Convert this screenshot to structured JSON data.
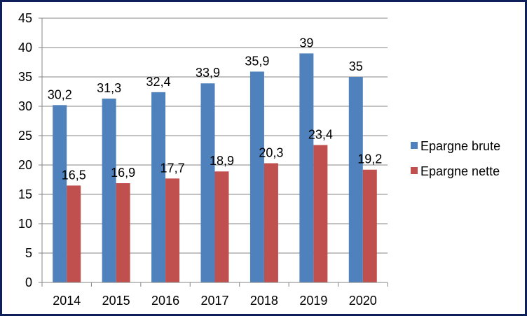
{
  "chart_data": {
    "type": "bar",
    "title": "",
    "xlabel": "",
    "ylabel": "",
    "categories": [
      "2014",
      "2015",
      "2016",
      "2017",
      "2018",
      "2019",
      "2020"
    ],
    "series": [
      {
        "name": "Epargne brute",
        "color": "#4f81bd",
        "values": [
          30.2,
          31.3,
          32.4,
          33.9,
          35.9,
          39,
          35
        ],
        "labels": [
          "30,2",
          "31,3",
          "32,4",
          "33,9",
          "35,9",
          "39",
          "35"
        ]
      },
      {
        "name": "Epargne nette",
        "color": "#c0504d",
        "values": [
          16.5,
          16.9,
          17.7,
          18.9,
          20.3,
          23.4,
          19.2
        ],
        "labels": [
          "16,5",
          "16,9",
          "17,7",
          "18,9",
          "20,3",
          "23,4",
          "19,2"
        ]
      }
    ],
    "ylim": [
      0,
      45
    ],
    "yticks": [
      0,
      5,
      10,
      15,
      20,
      25,
      30,
      35,
      40,
      45
    ],
    "grid": true,
    "legend": "right"
  }
}
